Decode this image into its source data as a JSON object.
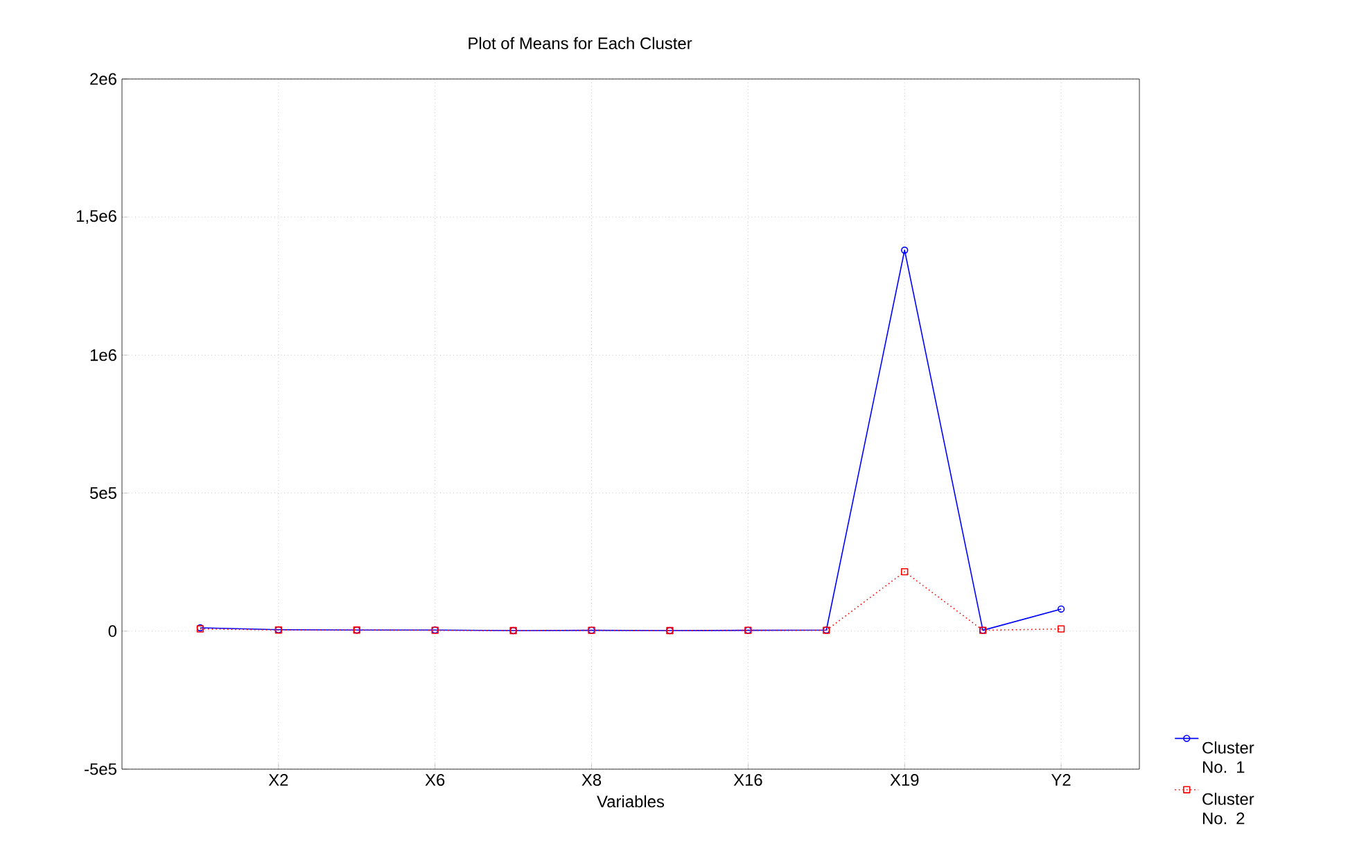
{
  "chart_data": {
    "type": "line",
    "title": "Plot of Means for Each Cluster",
    "xlabel": "Variables",
    "categories": [
      null,
      "X2",
      null,
      "X6",
      null,
      "X8",
      null,
      "X16",
      null,
      "X19",
      null,
      "Y2"
    ],
    "series": [
      {
        "name": "Cluster No. 1",
        "color": "#0000ff",
        "marker": "circle",
        "line_style": "solid",
        "values": [
          12000,
          5000,
          4000,
          4000,
          2000,
          3000,
          2000,
          3000,
          4000,
          1380000,
          3000,
          80000
        ]
      },
      {
        "name": "Cluster No. 2",
        "color": "#ff0000",
        "marker": "square",
        "line_style": "dotted",
        "values": [
          8000,
          4000,
          4000,
          3000,
          2000,
          3000,
          2000,
          3000,
          3000,
          215000,
          3000,
          8000
        ]
      }
    ],
    "ylim": [
      -500000,
      2000000
    ],
    "yticks": [
      {
        "value": -500000,
        "label": "-5e5"
      },
      0,
      {
        "value": 500000,
        "label": "5e5"
      },
      {
        "value": 1000000,
        "label": "1e6"
      },
      {
        "value": 1500000,
        "label": "1,5e6"
      },
      {
        "value": 2000000,
        "label": "2e6"
      }
    ],
    "grid": true,
    "legend": "bottom right"
  }
}
